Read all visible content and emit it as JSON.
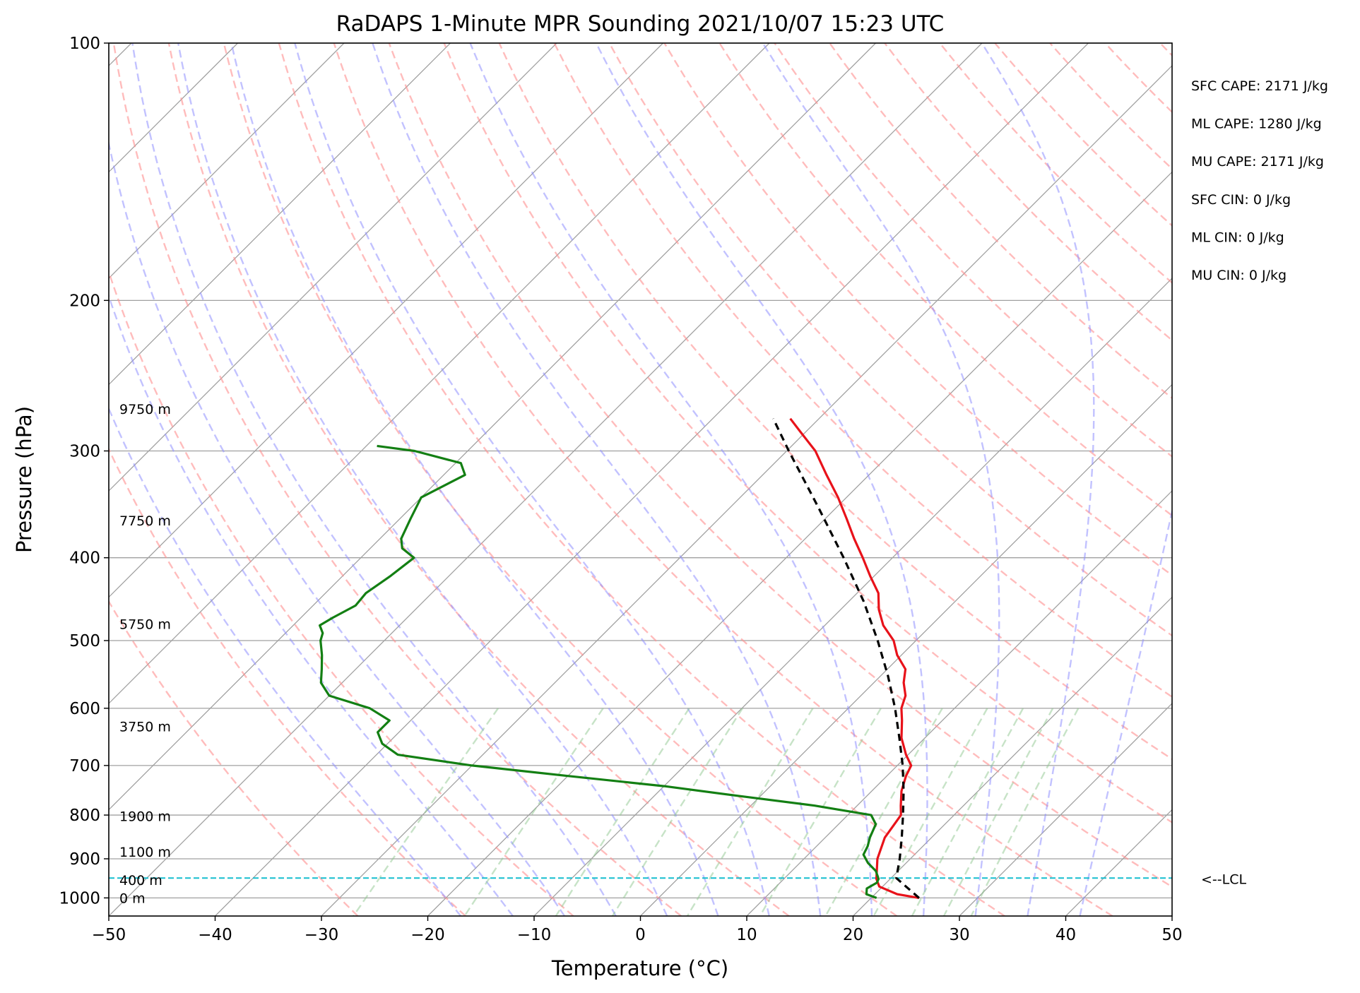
{
  "chart_data": {
    "type": "line",
    "subtype": "skew-t log-p sounding",
    "title": "RaDAPS 1-Minute MPR Sounding 2021/10/07 15:23 UTC",
    "xlabel": "Temperature (°C)",
    "ylabel": "Pressure (hPa)",
    "xlim": [
      -50,
      50
    ],
    "ylim": [
      1050,
      100
    ],
    "y_scale": "log",
    "grid": true,
    "x_ticks": [
      -50,
      -40,
      -30,
      -20,
      -10,
      0,
      10,
      20,
      30,
      40,
      50
    ],
    "x_tick_labels": [
      "−50",
      "−40",
      "−30",
      "−20",
      "−10",
      "0",
      "10",
      "20",
      "30",
      "40",
      "50"
    ],
    "y_ticks": [
      100,
      200,
      300,
      400,
      500,
      600,
      700,
      800,
      900,
      1000
    ],
    "y_tick_labels": [
      "100",
      "200",
      "300",
      "400",
      "500",
      "600",
      "700",
      "800",
      "900",
      "1000"
    ],
    "lcl": {
      "pressure": 948,
      "label": "<--LCL",
      "color": "#17becf"
    },
    "height_labels": [
      {
        "pressure": 1000,
        "text": "0 m"
      },
      {
        "pressure": 953,
        "text": "400 m"
      },
      {
        "pressure": 883,
        "text": "1100 m"
      },
      {
        "pressure": 802,
        "text": "1900 m"
      },
      {
        "pressure": 630,
        "text": "3750 m"
      },
      {
        "pressure": 478,
        "text": "5750 m"
      },
      {
        "pressure": 362,
        "text": "7750 m"
      },
      {
        "pressure": 268,
        "text": "9750 m"
      }
    ],
    "indices": [
      {
        "text": "SFC CAPE: 2171 J/kg"
      },
      {
        "text": "ML CAPE: 1280 J/kg"
      },
      {
        "text": "MU CAPE: 2171 J/kg"
      },
      {
        "text": "SFC CIN: 0 J/kg"
      },
      {
        "text": "ML CIN: 0 J/kg"
      },
      {
        "text": "MU CIN: 0 J/kg"
      }
    ],
    "series": [
      {
        "kind": "temperature",
        "color": "#e8121a",
        "points": [
          {
            "p": 1000,
            "t": 24.5
          },
          {
            "p": 990,
            "t": 22.1
          },
          {
            "p": 970,
            "t": 19.7
          },
          {
            "p": 950,
            "t": 18.7
          },
          {
            "p": 900,
            "t": 16.9
          },
          {
            "p": 850,
            "t": 15.6
          },
          {
            "p": 800,
            "t": 15.0
          },
          {
            "p": 780,
            "t": 14.1
          },
          {
            "p": 750,
            "t": 12.8
          },
          {
            "p": 720,
            "t": 11.8
          },
          {
            "p": 700,
            "t": 11.3
          },
          {
            "p": 680,
            "t": 9.8
          },
          {
            "p": 650,
            "t": 7.8
          },
          {
            "p": 620,
            "t": 6.2
          },
          {
            "p": 600,
            "t": 5.0
          },
          {
            "p": 580,
            "t": 4.2
          },
          {
            "p": 560,
            "t": 2.8
          },
          {
            "p": 540,
            "t": 1.7
          },
          {
            "p": 520,
            "t": -0.4
          },
          {
            "p": 500,
            "t": -2.1
          },
          {
            "p": 480,
            "t": -4.5
          },
          {
            "p": 460,
            "t": -6.4
          },
          {
            "p": 440,
            "t": -8.0
          },
          {
            "p": 420,
            "t": -10.4
          },
          {
            "p": 400,
            "t": -12.8
          },
          {
            "p": 380,
            "t": -15.4
          },
          {
            "p": 360,
            "t": -18.0
          },
          {
            "p": 340,
            "t": -20.8
          },
          {
            "p": 320,
            "t": -24.0
          },
          {
            "p": 300,
            "t": -27.3
          },
          {
            "p": 285,
            "t": -30.5
          },
          {
            "p": 275,
            "t": -32.7
          }
        ]
      },
      {
        "kind": "dewpoint",
        "color": "#137f13",
        "points": [
          {
            "p": 1000,
            "t": 20.5
          },
          {
            "p": 990,
            "t": 19.2
          },
          {
            "p": 975,
            "t": 18.7
          },
          {
            "p": 960,
            "t": 19.1
          },
          {
            "p": 950,
            "t": 18.9
          },
          {
            "p": 930,
            "t": 17.9
          },
          {
            "p": 910,
            "t": 16.4
          },
          {
            "p": 890,
            "t": 15.2
          },
          {
            "p": 870,
            "t": 14.8
          },
          {
            "p": 850,
            "t": 14.2
          },
          {
            "p": 820,
            "t": 13.5
          },
          {
            "p": 800,
            "t": 12.2
          },
          {
            "p": 780,
            "t": 6.0
          },
          {
            "p": 760,
            "t": -2.0
          },
          {
            "p": 740,
            "t": -10.0
          },
          {
            "p": 720,
            "t": -20.0
          },
          {
            "p": 700,
            "t": -30.0
          },
          {
            "p": 680,
            "t": -38.0
          },
          {
            "p": 660,
            "t": -40.5
          },
          {
            "p": 640,
            "t": -42.0
          },
          {
            "p": 620,
            "t": -42.0
          },
          {
            "p": 600,
            "t": -45.0
          },
          {
            "p": 580,
            "t": -50.0
          },
          {
            "p": 560,
            "t": -52.0
          },
          {
            "p": 540,
            "t": -53.2
          },
          {
            "p": 520,
            "t": -54.5
          },
          {
            "p": 500,
            "t": -56.0
          },
          {
            "p": 490,
            "t": -56.5
          },
          {
            "p": 480,
            "t": -57.5
          },
          {
            "p": 470,
            "t": -57.0
          },
          {
            "p": 455,
            "t": -56.0
          },
          {
            "p": 440,
            "t": -56.2
          },
          {
            "p": 420,
            "t": -55.5
          },
          {
            "p": 400,
            "t": -55.0
          },
          {
            "p": 390,
            "t": -57.0
          },
          {
            "p": 380,
            "t": -58.0
          },
          {
            "p": 360,
            "t": -59.0
          },
          {
            "p": 340,
            "t": -60.0
          },
          {
            "p": 320,
            "t": -58.0
          },
          {
            "p": 310,
            "t": -59.5
          },
          {
            "p": 300,
            "t": -65.0
          },
          {
            "p": 296,
            "t": -69.0
          }
        ]
      },
      {
        "kind": "parcel",
        "color": "#000000",
        "style": "dashed",
        "points": [
          {
            "p": 1000,
            "t": 24.5
          },
          {
            "p": 948,
            "t": 20.5
          },
          {
            "p": 900,
            "t": 19.0
          },
          {
            "p": 850,
            "t": 17.2
          },
          {
            "p": 800,
            "t": 15.2
          },
          {
            "p": 750,
            "t": 13.0
          },
          {
            "p": 700,
            "t": 10.5
          },
          {
            "p": 650,
            "t": 7.6
          },
          {
            "p": 600,
            "t": 4.4
          },
          {
            "p": 550,
            "t": 0.7
          },
          {
            "p": 500,
            "t": -3.6
          },
          {
            "p": 450,
            "t": -8.6
          },
          {
            "p": 400,
            "t": -14.6
          },
          {
            "p": 350,
            "t": -21.6
          },
          {
            "p": 300,
            "t": -29.8
          },
          {
            "p": 275,
            "t": -34.3
          }
        ]
      }
    ],
    "reference_lines": {
      "isotherm_color": "#a0a0a0",
      "dry_adiabat_color": "#ff9090",
      "moist_adiabat_color": "#8f8fff",
      "mixing_ratio_color": "#8fc78f"
    }
  }
}
